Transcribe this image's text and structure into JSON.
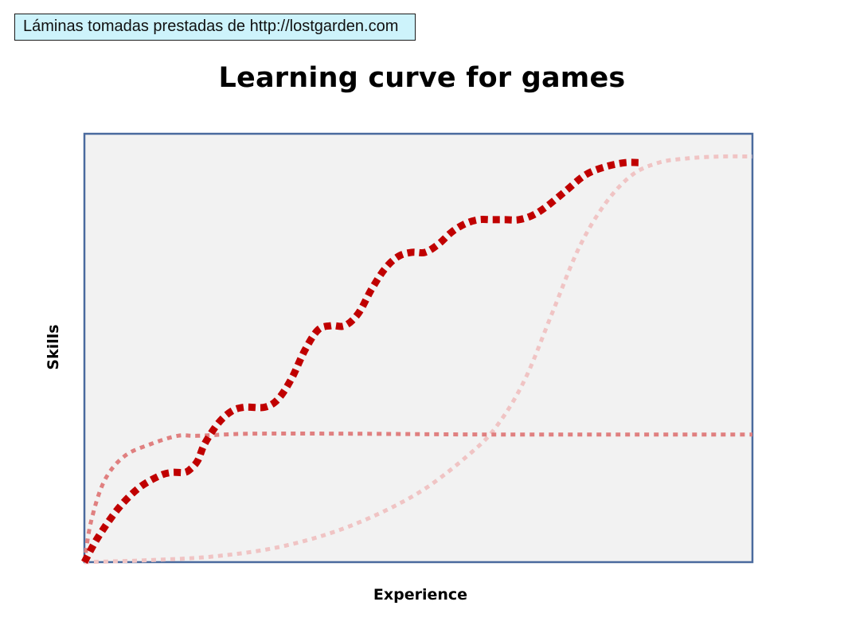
{
  "credit": {
    "text": "Láminas tomadas prestadas de http://lostgarden.com"
  },
  "chart_data": {
    "type": "line",
    "title": "Learning curve for games",
    "xlabel": "Experience",
    "ylabel": "Skills",
    "xlim": [
      0,
      100
    ],
    "ylim": [
      0,
      100
    ],
    "grid": false,
    "legend": "none",
    "tick_labels": "none",
    "plot_background": "#f2f2f2",
    "frame_color": "#4a6a9e",
    "series": [
      {
        "style": "thick-dotted",
        "color": "#c00000",
        "points": [
          [
            0,
            0
          ],
          [
            2,
            6
          ],
          [
            5,
            13
          ],
          [
            8,
            18
          ],
          [
            11,
            21
          ],
          [
            13,
            22
          ],
          [
            15,
            22
          ],
          [
            16,
            23
          ],
          [
            17,
            25
          ],
          [
            18,
            29
          ],
          [
            20,
            34
          ],
          [
            22,
            37
          ],
          [
            24,
            38
          ],
          [
            27,
            38
          ],
          [
            29,
            40
          ],
          [
            31,
            45
          ],
          [
            33,
            52
          ],
          [
            35,
            57
          ],
          [
            37,
            58
          ],
          [
            39,
            58
          ],
          [
            41,
            61
          ],
          [
            43,
            67
          ],
          [
            45,
            72
          ],
          [
            47,
            75
          ],
          [
            49,
            76
          ],
          [
            51,
            76
          ],
          [
            53,
            78
          ],
          [
            55,
            81
          ],
          [
            57,
            83
          ],
          [
            59,
            84
          ],
          [
            61,
            84
          ],
          [
            63,
            84
          ],
          [
            65,
            84
          ],
          [
            67,
            85
          ],
          [
            69,
            87
          ],
          [
            72,
            91
          ],
          [
            75,
            95
          ],
          [
            78,
            97
          ],
          [
            81,
            98
          ],
          [
            83,
            98
          ]
        ]
      },
      {
        "style": "dotted",
        "color": "#e08080",
        "points": [
          [
            0,
            0
          ],
          [
            1,
            10
          ],
          [
            3,
            20
          ],
          [
            6,
            26
          ],
          [
            10,
            29
          ],
          [
            14,
            31
          ],
          [
            17,
            31
          ],
          [
            25,
            31.5
          ],
          [
            40,
            31.5
          ],
          [
            60,
            31.3
          ],
          [
            80,
            31.3
          ],
          [
            100,
            31.3
          ]
        ]
      },
      {
        "style": "dotted",
        "color": "#f0c4c4",
        "points": [
          [
            0,
            0
          ],
          [
            10,
            0.5
          ],
          [
            20,
            1.5
          ],
          [
            30,
            4
          ],
          [
            40,
            9
          ],
          [
            50,
            17
          ],
          [
            58,
            27
          ],
          [
            62,
            34
          ],
          [
            66,
            45
          ],
          [
            70,
            61
          ],
          [
            74,
            77
          ],
          [
            78,
            88
          ],
          [
            82,
            95
          ],
          [
            86,
            98
          ],
          [
            90,
            99
          ],
          [
            95,
            99.5
          ],
          [
            100,
            99.5
          ]
        ]
      }
    ]
  }
}
